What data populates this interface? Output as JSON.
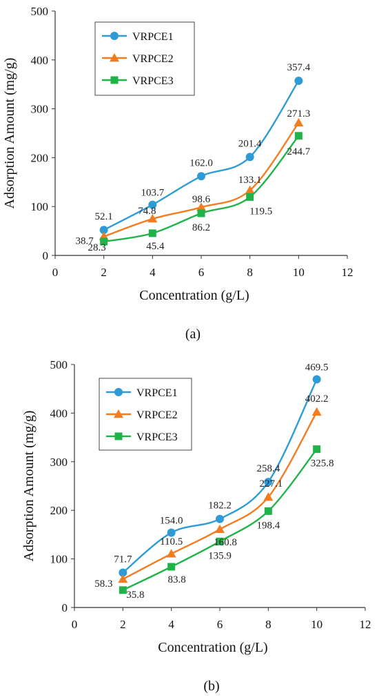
{
  "chart_data": [
    {
      "type": "line",
      "panel_label": "(a)",
      "xlabel": "Concentration (g/L)",
      "ylabel": "Adsorption Amount (mg/g)",
      "xlim": [
        0,
        12
      ],
      "ylim": [
        0,
        500
      ],
      "x_ticks": [
        0,
        2,
        4,
        6,
        8,
        10,
        12
      ],
      "y_ticks": [
        0,
        100,
        200,
        300,
        400,
        500
      ],
      "grid": false,
      "legend_position": "top-left",
      "x": [
        2,
        4,
        6,
        8,
        10
      ],
      "series": [
        {
          "name": "VRPCE1",
          "color": "#2e9bd6",
          "marker": "circle",
          "values": [
            52.1,
            103.7,
            162.0,
            201.4,
            357.4
          ],
          "labels": [
            "52.1",
            "103.7",
            "162.0",
            "201.4",
            "357.4"
          ]
        },
        {
          "name": "VRPCE2",
          "color": "#f47c20",
          "marker": "triangle",
          "values": [
            38.7,
            74.8,
            98.6,
            133.1,
            271.3
          ],
          "labels": [
            "38.7",
            "74.8",
            "98.6",
            "133.1",
            "271.3"
          ]
        },
        {
          "name": "VRPCE3",
          "color": "#1fb34a",
          "marker": "square",
          "values": [
            28.3,
            45.4,
            86.2,
            119.5,
            244.7
          ],
          "labels": [
            "28.3",
            "45.4",
            "86.2",
            "119.5",
            "244.7"
          ]
        }
      ]
    },
    {
      "type": "line",
      "panel_label": "(b)",
      "xlabel": "Concentration (g/L)",
      "ylabel": "Adsorption Amount (mg/g)",
      "xlim": [
        0,
        12
      ],
      "ylim": [
        0,
        500
      ],
      "x_ticks": [
        0,
        2,
        4,
        6,
        8,
        10,
        12
      ],
      "y_ticks": [
        0,
        100,
        200,
        300,
        400,
        500
      ],
      "grid": false,
      "legend_position": "top-left",
      "x": [
        2,
        4,
        6,
        8,
        10
      ],
      "series": [
        {
          "name": "VRPCE1",
          "color": "#2e9bd6",
          "marker": "circle",
          "values": [
            71.7,
            154.0,
            182.2,
            258.4,
            469.5
          ],
          "labels": [
            "71.7",
            "154.0",
            "182.2",
            "258.4",
            "469.5"
          ]
        },
        {
          "name": "VRPCE2",
          "color": "#f47c20",
          "marker": "triangle",
          "values": [
            58.3,
            110.5,
            160.8,
            227.1,
            402.2
          ],
          "labels": [
            "58.3",
            "110.5",
            "160.8",
            "227.1",
            "402.2"
          ]
        },
        {
          "name": "VRPCE3",
          "color": "#1fb34a",
          "marker": "square",
          "values": [
            35.8,
            83.8,
            135.9,
            198.4,
            325.8
          ],
          "labels": [
            "35.8",
            "83.8",
            "135.9",
            "198.4",
            "325.8"
          ]
        }
      ]
    }
  ]
}
